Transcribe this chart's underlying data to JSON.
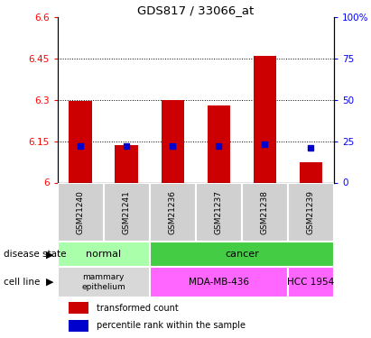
{
  "title": "GDS817 / 33066_at",
  "samples": [
    "GSM21240",
    "GSM21241",
    "GSM21236",
    "GSM21237",
    "GSM21238",
    "GSM21239"
  ],
  "transformed_counts": [
    6.295,
    6.135,
    6.3,
    6.28,
    6.46,
    6.075
  ],
  "percentile_ranks": [
    22,
    22,
    22,
    22,
    23,
    21
  ],
  "ylim": [
    6.0,
    6.6
  ],
  "yticks_left": [
    6.0,
    6.15,
    6.3,
    6.45,
    6.6
  ],
  "yticks_right": [
    0,
    25,
    50,
    75,
    100
  ],
  "left_tick_labels": [
    "6",
    "6.15",
    "6.3",
    "6.45",
    "6.6"
  ],
  "right_tick_labels": [
    "0",
    "25",
    "50",
    "75",
    "100%"
  ],
  "bar_color": "#cc0000",
  "pct_color": "#0000cc",
  "disease_normal_color": "#aaffaa",
  "disease_cancer_color": "#44cc44",
  "cell_mammary_color": "#d8d8d8",
  "cell_mda_color": "#ff66ff",
  "cell_hcc_color": "#ff66ff",
  "legend_bar_color": "#cc0000",
  "legend_pct_color": "#0000cc",
  "bg_color": "#ffffff"
}
